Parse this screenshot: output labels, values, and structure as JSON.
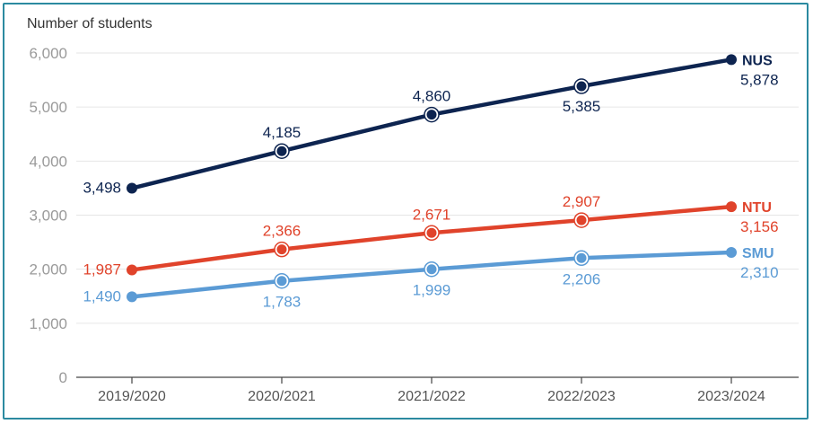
{
  "chart_data": {
    "type": "line",
    "ylabel": "Number of students",
    "categories": [
      "2019/2020",
      "2020/2021",
      "2021/2022",
      "2022/2023",
      "2023/2024"
    ],
    "ylim": [
      0,
      6000
    ],
    "yticks": [
      "0",
      "1,000",
      "2,000",
      "3,000",
      "4,000",
      "5,000",
      "6,000"
    ],
    "grid": true,
    "series": [
      {
        "name": "NUS",
        "color": "#0d2450",
        "values": [
          3498,
          4185,
          4860,
          5385,
          5878
        ],
        "labels": [
          "3,498",
          "4,185",
          "4,860",
          "5,385",
          "5,878"
        ]
      },
      {
        "name": "NTU",
        "color": "#e0432b",
        "values": [
          1987,
          2366,
          2671,
          2907,
          3156
        ],
        "labels": [
          "1,987",
          "2,366",
          "2,671",
          "2,907",
          "3,156"
        ]
      },
      {
        "name": "SMU",
        "color": "#5b9bd5",
        "values": [
          1490,
          1783,
          1999,
          2206,
          2310
        ],
        "labels": [
          "1,490",
          "1,783",
          "1,999",
          "2,206",
          "2,310"
        ]
      }
    ]
  }
}
